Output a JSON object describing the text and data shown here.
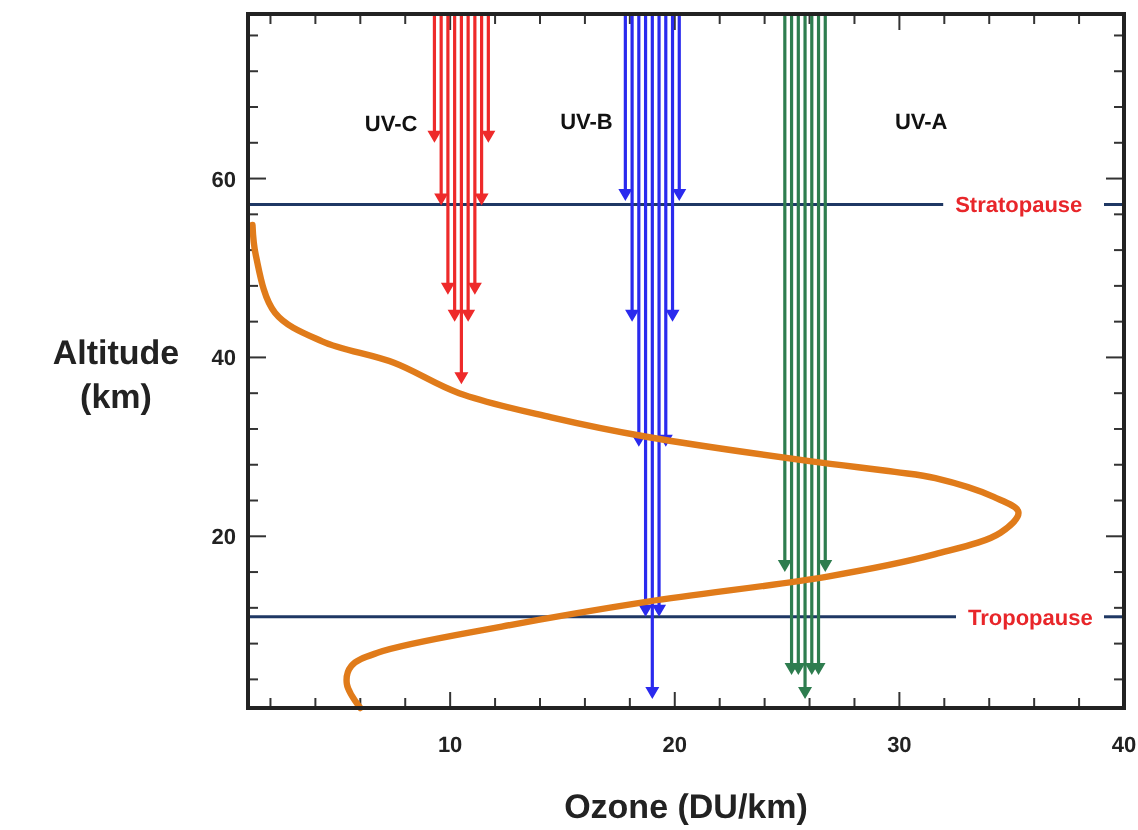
{
  "chart_data": {
    "type": "line",
    "xlabel": "Ozone (DU/km)",
    "ylabel": "Altitude (km)",
    "annotations": [
      "UV-C",
      "UV-B",
      "UV-A"
    ],
    "series": [
      {
        "color": "#e07b1a",
        "x": [
          1.2,
          1.35,
          2.2,
          4.3,
          7.5,
          10.4,
          14.5,
          18.8,
          26,
          29.8,
          31.6,
          34.2,
          35.3,
          34.5,
          31.6,
          26.8,
          18.8,
          12.3,
          6.8,
          5.6,
          5.4,
          6.0
        ],
        "values": [
          54.8,
          51.4,
          45,
          41.8,
          39.4,
          36,
          33.3,
          31.1,
          28.4,
          27.2,
          26.5,
          24.4,
          22.7,
          20.4,
          18,
          15.5,
          12.7,
          9.9,
          7,
          5.5,
          3.5,
          0.8
        ]
      }
    ],
    "xlim": [
      1,
      40
    ],
    "ylim": [
      0.8,
      78.4
    ],
    "xticks": [
      {
        "value": 2,
        "label": null
      },
      {
        "value": 4,
        "label": null
      },
      {
        "value": 6,
        "label": null
      },
      {
        "value": 8,
        "label": null
      },
      10,
      {
        "value": 12,
        "label": null
      },
      {
        "value": 14,
        "label": null
      },
      {
        "value": 16,
        "label": null
      },
      {
        "value": 18,
        "label": null
      },
      20,
      {
        "value": 22,
        "label": null
      },
      {
        "value": 24,
        "label": null
      },
      {
        "value": 26,
        "label": null
      },
      {
        "value": 28,
        "label": null
      },
      30,
      {
        "value": 32,
        "label": null
      },
      {
        "value": 34,
        "label": null
      },
      {
        "value": 36,
        "label": null
      },
      {
        "value": 38,
        "label": null
      },
      40
    ],
    "yticks": [
      {
        "value": 4,
        "label": null
      },
      {
        "value": 8,
        "label": null
      },
      {
        "value": 12,
        "label": null
      },
      {
        "value": 16,
        "label": null
      },
      20,
      {
        "value": 24,
        "label": null
      },
      {
        "value": 28,
        "label": null
      },
      {
        "value": 32,
        "label": null
      },
      {
        "value": 36,
        "label": null
      },
      40,
      {
        "value": 44,
        "label": null
      },
      {
        "value": 48,
        "label": null
      },
      {
        "value": 52,
        "label": null
      },
      {
        "value": 56,
        "label": null
      },
      60,
      {
        "value": 64,
        "label": null
      },
      {
        "value": 68,
        "label": null
      },
      {
        "value": 72,
        "label": null
      },
      {
        "value": 76,
        "label": null
      }
    ],
    "ref_lines": [
      {
        "axis": "y",
        "value": 57.1,
        "label": "Stratopause",
        "color": "#1f3864"
      },
      {
        "axis": "y",
        "value": 11,
        "label": "Tropopause",
        "color": "#1f3864"
      }
    ],
    "grid": false,
    "marker": "none",
    "line_style": "solid"
  }
}
